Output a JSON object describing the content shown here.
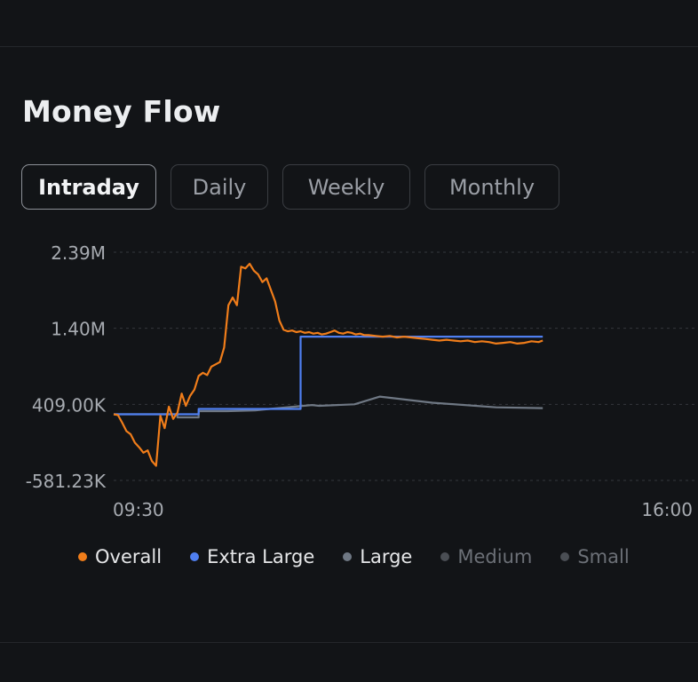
{
  "title": "Money Flow",
  "tabs": [
    {
      "label": "Intraday",
      "active": true
    },
    {
      "label": "Daily",
      "active": false
    },
    {
      "label": "Weekly",
      "active": false
    },
    {
      "label": "Monthly",
      "active": false
    }
  ],
  "chart_data": {
    "type": "line",
    "yticks": [
      "2.39M",
      "1.40M",
      "409.00K",
      "-581.23K"
    ],
    "ytick_values": [
      2390000,
      1400000,
      409000,
      -581230
    ],
    "ylim": [
      -581230,
      2390000
    ],
    "xticks": [
      "09:30",
      "16:00"
    ],
    "x_range_minutes": [
      0,
      390
    ],
    "grid": true,
    "legend_position": "bottom",
    "series": [
      {
        "name": "Overall",
        "color": "#f07d1a",
        "x": [
          0,
          3,
          6,
          9,
          12,
          15,
          18,
          21,
          24,
          27,
          30,
          33,
          36,
          39,
          42,
          45,
          48,
          51,
          54,
          57,
          60,
          63,
          66,
          69,
          72,
          75,
          78,
          81,
          84,
          87,
          90,
          93,
          96,
          99,
          102,
          105,
          108,
          111,
          114,
          117,
          120,
          123,
          126,
          129,
          132,
          135,
          138,
          141,
          144,
          147,
          150,
          153,
          156,
          159,
          162,
          165,
          168,
          171,
          174,
          177,
          180,
          185,
          190,
          195,
          200,
          205,
          210,
          215,
          220,
          225,
          230,
          235,
          240,
          245,
          250,
          255,
          260,
          265,
          270,
          275,
          280,
          285,
          290,
          295,
          300,
          303
        ],
        "values": [
          280000,
          270000,
          170000,
          60000,
          20000,
          -90000,
          -150000,
          -220000,
          -190000,
          -330000,
          -390000,
          260000,
          100000,
          380000,
          220000,
          300000,
          550000,
          390000,
          520000,
          600000,
          780000,
          820000,
          790000,
          900000,
          930000,
          960000,
          1150000,
          1700000,
          1800000,
          1700000,
          2200000,
          2180000,
          2240000,
          2150000,
          2100000,
          2000000,
          2050000,
          1900000,
          1750000,
          1500000,
          1380000,
          1360000,
          1370000,
          1350000,
          1360000,
          1340000,
          1350000,
          1330000,
          1340000,
          1320000,
          1330000,
          1350000,
          1370000,
          1340000,
          1330000,
          1350000,
          1340000,
          1320000,
          1330000,
          1310000,
          1310000,
          1300000,
          1290000,
          1300000,
          1280000,
          1290000,
          1280000,
          1270000,
          1260000,
          1250000,
          1240000,
          1250000,
          1240000,
          1230000,
          1240000,
          1220000,
          1230000,
          1220000,
          1200000,
          1210000,
          1220000,
          1200000,
          1210000,
          1230000,
          1220000,
          1240000
        ]
      },
      {
        "name": "Extra Large",
        "color": "#4f7ff0",
        "x": [
          0,
          60,
          60,
          132,
          132,
          303
        ],
        "values": [
          280000,
          280000,
          350000,
          350000,
          1290000,
          1290000
        ]
      },
      {
        "name": "Large",
        "color": "#6f7884",
        "x": [
          0,
          30,
          30,
          45,
          45,
          60,
          60,
          80,
          80,
          100,
          100,
          110,
          110,
          140,
          140,
          145,
          145,
          170,
          170,
          188,
          188,
          225,
          225,
          270,
          270,
          303
        ],
        "values": [
          280000,
          280000,
          280000,
          280000,
          240000,
          240000,
          320000,
          320000,
          320000,
          330000,
          330000,
          350000,
          350000,
          400000,
          400000,
          390000,
          390000,
          410000,
          410000,
          510000,
          510000,
          430000,
          430000,
          370000,
          370000,
          360000
        ]
      }
    ],
    "legend": [
      {
        "name": "Overall",
        "color": "#f07d1a",
        "active": true
      },
      {
        "name": "Extra Large",
        "color": "#4f7ff0",
        "active": true
      },
      {
        "name": "Large",
        "color": "#6f7884",
        "active": true
      },
      {
        "name": "Medium",
        "color": "#4a4e54",
        "active": false
      },
      {
        "name": "Small",
        "color": "#4a4e54",
        "active": false
      }
    ]
  }
}
